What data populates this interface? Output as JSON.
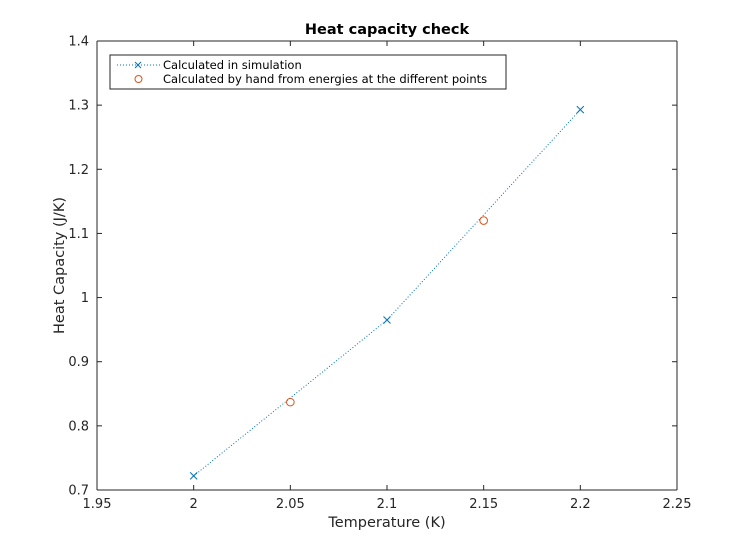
{
  "chart_data": {
    "type": "line",
    "title": "Heat capacity check",
    "xlabel": "Temperature (K)",
    "ylabel": "Heat Capacity (J/K)",
    "xlim": [
      1.95,
      2.25
    ],
    "ylim": [
      0.7,
      1.4
    ],
    "xticks": [
      "1.95",
      "2",
      "2.05",
      "2.1",
      "2.15",
      "2.2",
      "2.25"
    ],
    "yticks": [
      "0.7",
      "0.8",
      "0.9",
      "1",
      "1.1",
      "1.2",
      "1.3",
      "1.4"
    ],
    "grid": false,
    "legend_position": "top-left",
    "series": [
      {
        "name": "Calculated in simulation",
        "marker": "x",
        "line": "dotted",
        "color": "#0072BD",
        "x": [
          2.0,
          2.1,
          2.2
        ],
        "y": [
          0.722,
          0.965,
          1.293
        ]
      },
      {
        "name": "Calculated by hand from energies at the different points",
        "marker": "circle",
        "line": "none",
        "color": "#D95319",
        "x": [
          2.05,
          2.15
        ],
        "y": [
          0.837,
          1.12
        ]
      }
    ]
  }
}
